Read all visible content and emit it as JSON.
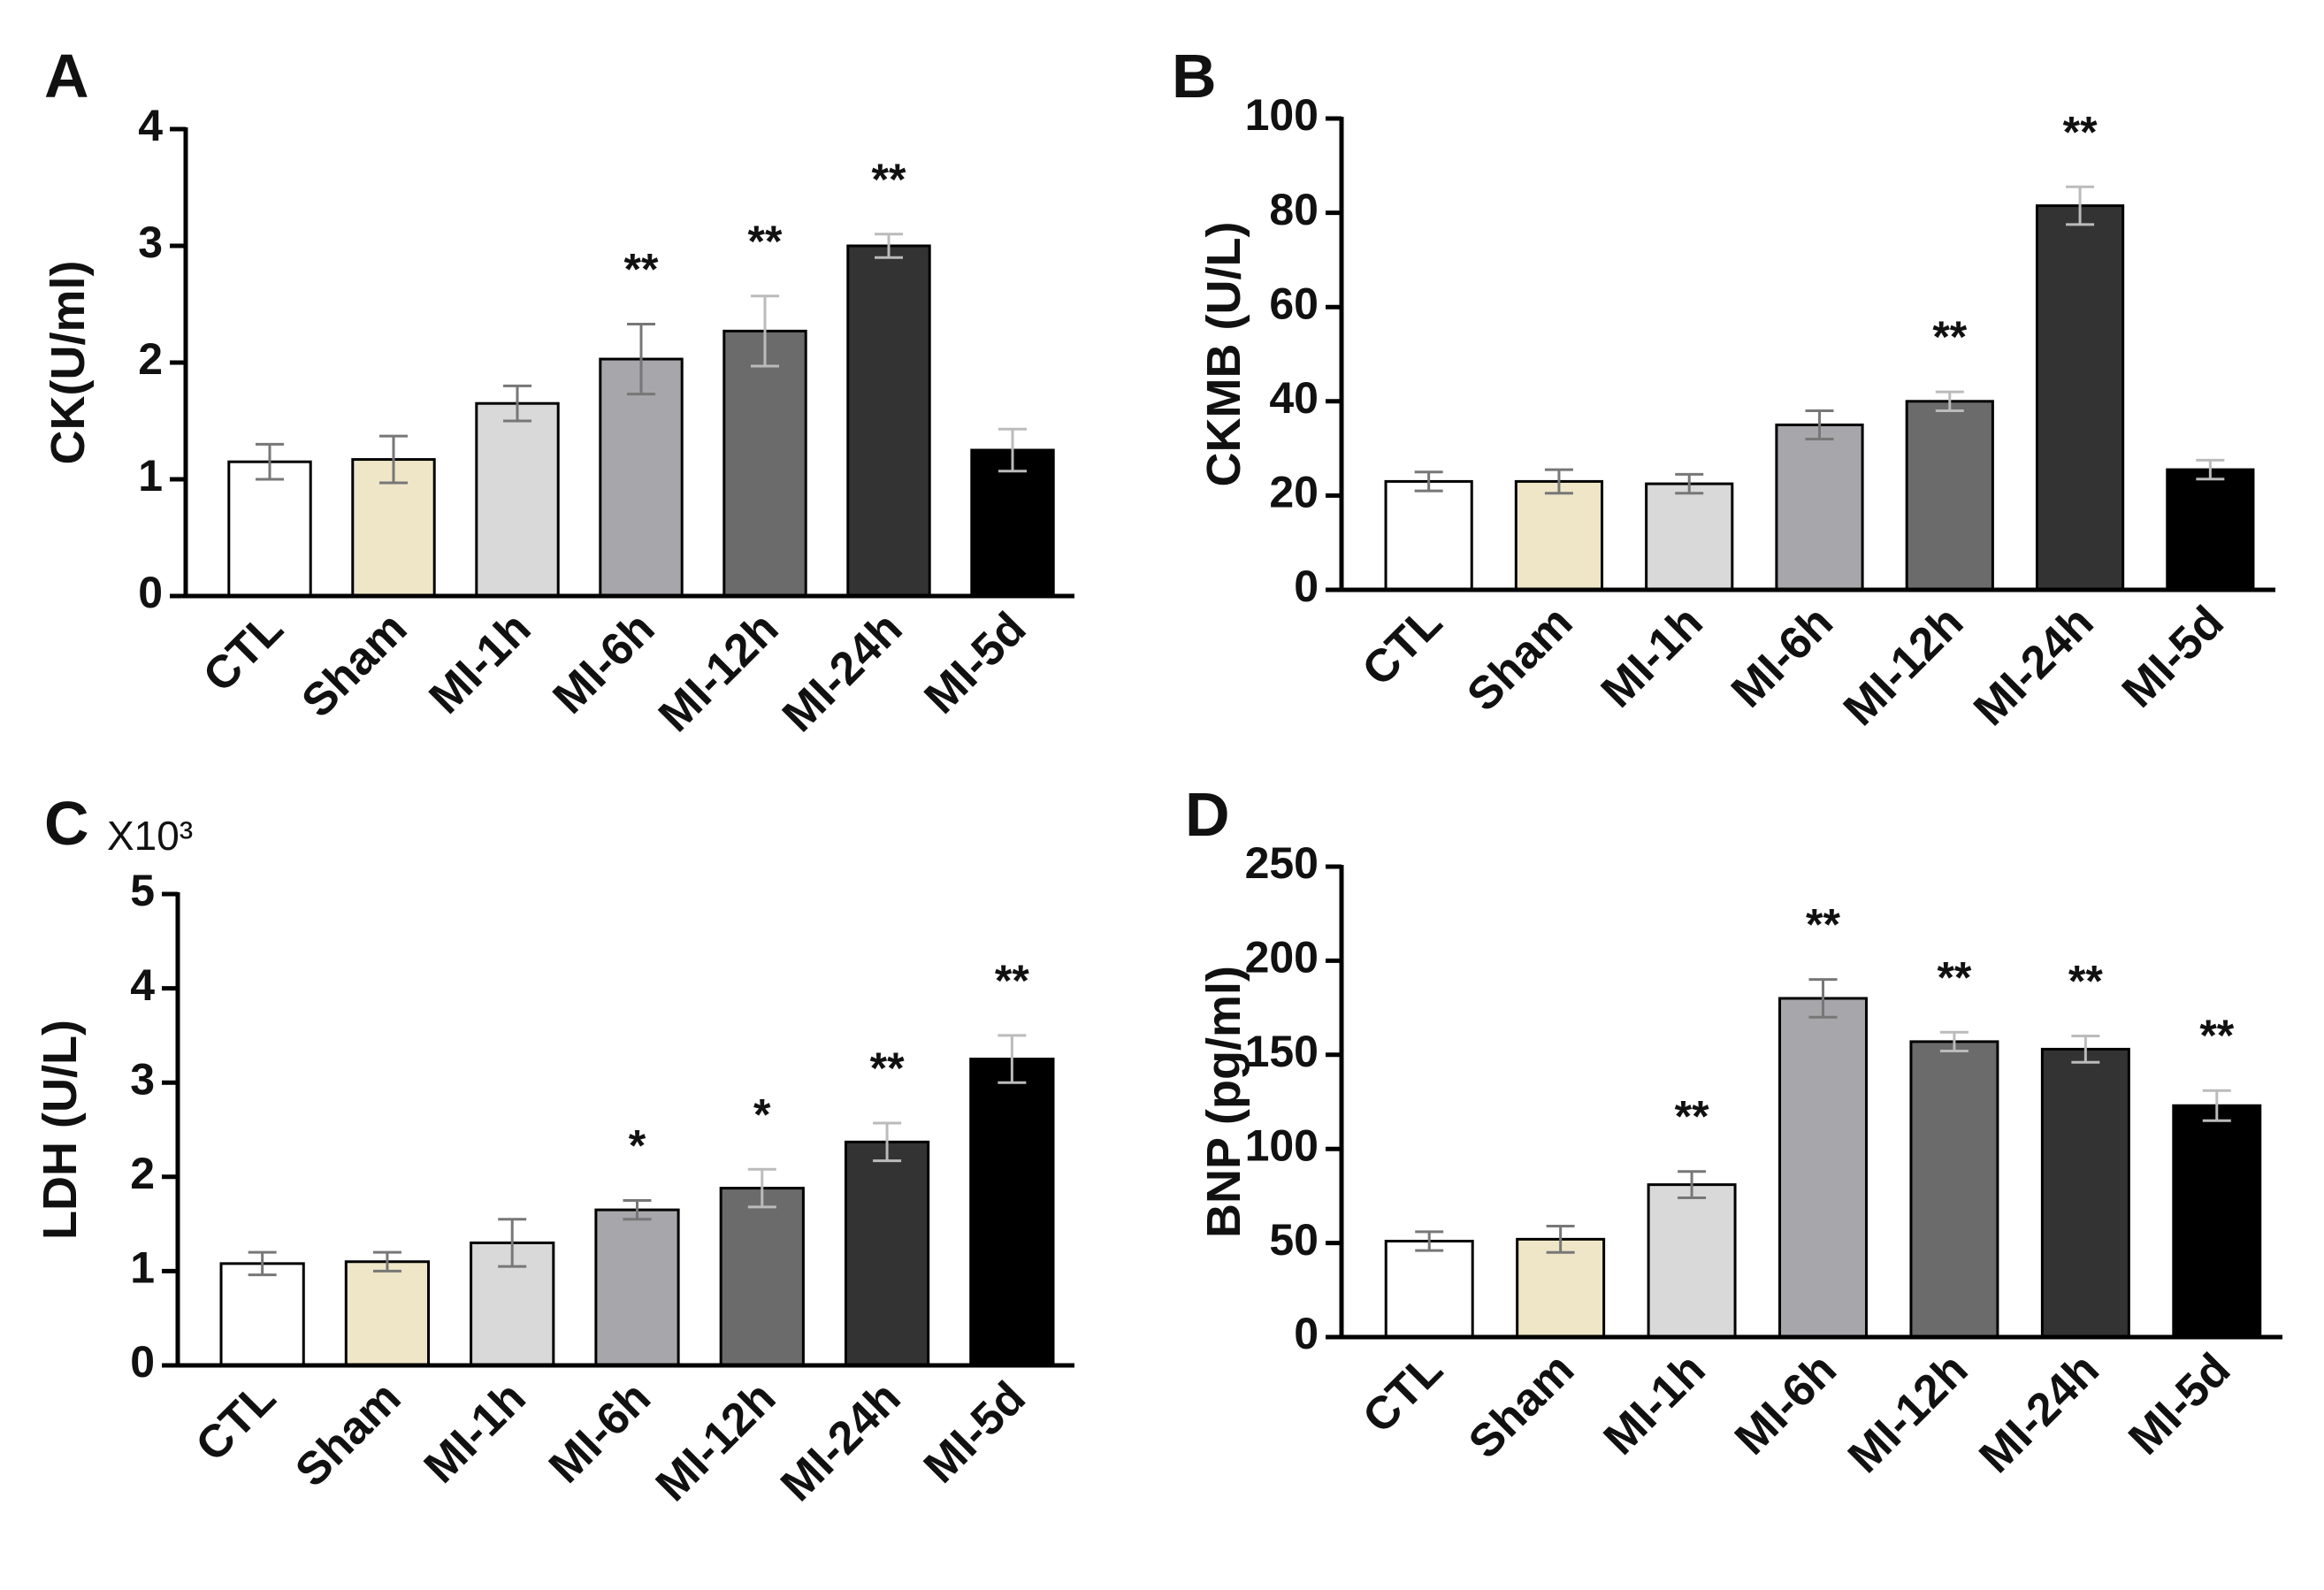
{
  "chart_data": [
    {
      "type": "bar",
      "panel_label": "A",
      "ylabel": "CK(U/ml)",
      "categories": [
        "CTL",
        "Sham",
        "MI-1h",
        "MI-6h",
        "MI-12h",
        "MI-24h",
        "MI-5d"
      ],
      "values": [
        1.15,
        1.17,
        1.65,
        2.03,
        2.27,
        3.0,
        1.25
      ],
      "errors": [
        0.15,
        0.2,
        0.15,
        0.3,
        0.3,
        0.1,
        0.18
      ],
      "annotations": [
        null,
        null,
        null,
        "**",
        "**",
        "**",
        null
      ],
      "colors": [
        "#ffffff",
        "#efe6c8",
        "#d9d9d9",
        "#a6a6ab",
        "#6b6b6b",
        "#333333",
        "#000000"
      ],
      "ylim": [
        0,
        4
      ],
      "yticks": [
        0,
        1,
        2,
        3,
        4
      ]
    },
    {
      "type": "bar",
      "panel_label": "B",
      "ylabel": "CKMB (U/L)",
      "categories": [
        "CTL",
        "Sham",
        "MI-1h",
        "MI-6h",
        "MI-12h",
        "MI-24h",
        "MI-5d"
      ],
      "values": [
        23,
        23,
        22.5,
        35,
        40,
        81.5,
        25.5
      ],
      "errors": [
        2,
        2.5,
        2,
        3,
        2,
        4,
        2
      ],
      "annotations": [
        null,
        null,
        null,
        null,
        "**",
        "**",
        null
      ],
      "colors": [
        "#ffffff",
        "#efe6c8",
        "#d9d9d9",
        "#a6a6ab",
        "#6b6b6b",
        "#333333",
        "#000000"
      ],
      "ylim": [
        0,
        100
      ],
      "yticks": [
        0,
        20,
        40,
        60,
        80,
        100
      ]
    },
    {
      "type": "bar",
      "panel_label": "C",
      "ylabel": "LDH (U/L)",
      "multiplier": "X10³",
      "categories": [
        "CTL",
        "Sham",
        "MI-1h",
        "MI-6h",
        "MI-12h",
        "MI-24h",
        "MI-5d"
      ],
      "values": [
        1.08,
        1.1,
        1.3,
        1.65,
        1.88,
        2.37,
        3.25
      ],
      "errors": [
        0.12,
        0.1,
        0.25,
        0.1,
        0.2,
        0.2,
        0.25
      ],
      "annotations": [
        null,
        null,
        null,
        "*",
        "*",
        "**",
        "**"
      ],
      "colors": [
        "#ffffff",
        "#efe6c8",
        "#d9d9d9",
        "#a6a6ab",
        "#6b6b6b",
        "#333333",
        "#000000"
      ],
      "ylim": [
        0,
        5
      ],
      "yticks": [
        0,
        1,
        2,
        3,
        4,
        5
      ]
    },
    {
      "type": "bar",
      "panel_label": "D",
      "ylabel": "BNP (pg/ml)",
      "categories": [
        "CTL",
        "Sham",
        "MI-1h",
        "MI-6h",
        "MI-12h",
        "MI-24h",
        "MI-5d"
      ],
      "values": [
        51,
        52,
        81,
        180,
        157,
        153,
        123
      ],
      "errors": [
        5,
        7,
        7,
        10,
        5,
        7,
        8
      ],
      "annotations": [
        null,
        null,
        "**",
        "**",
        "**",
        "**",
        "**"
      ],
      "colors": [
        "#ffffff",
        "#efe6c8",
        "#d9d9d9",
        "#a6a6ab",
        "#6b6b6b",
        "#333333",
        "#000000"
      ],
      "ylim": [
        0,
        250
      ],
      "yticks": [
        0,
        50,
        100,
        150,
        200,
        250
      ]
    }
  ]
}
